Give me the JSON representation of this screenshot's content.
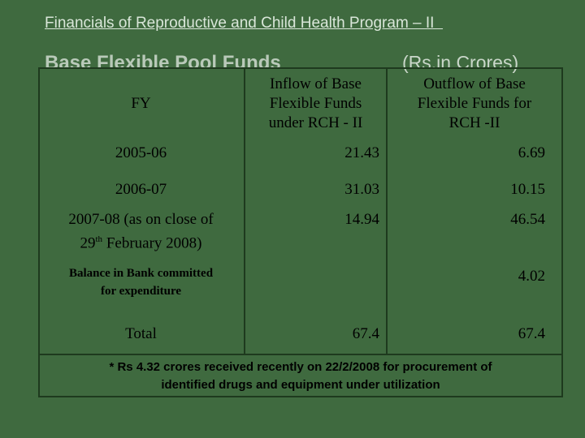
{
  "title": "Financials of Reproductive and Child Health Program – II  ",
  "subtitle": "Base Flexible Pool Funds",
  "unit": "(Rs.in Crores)",
  "table": {
    "headers": {
      "fy": "FY",
      "inflow": [
        "Inflow of Base",
        "Flexible Funds",
        "under RCH - II"
      ],
      "outflow": [
        "Outflow of Base",
        "Flexible Funds for",
        "RCH -II"
      ]
    },
    "rows": [
      {
        "fy": "2005-06",
        "inflow": "21.43",
        "outflow": "6.69"
      },
      {
        "fy": "2006-07",
        "inflow": "31.03",
        "outflow": "10.15"
      },
      {
        "fy_line1": "2007-08 (as on close of",
        "fy_line2_pre": "29",
        "fy_line2_sup": "th",
        "fy_line2_post": " February 2008)",
        "inflow": "14.94",
        "outflow": "46.54"
      }
    ],
    "balance": {
      "label_line1": "Balance in Bank committed",
      "label_line2": "for expenditure",
      "outflow": "4.02"
    },
    "total": {
      "label": "Total",
      "inflow": "67.4",
      "outflow": "67.4"
    }
  },
  "note": {
    "line1": "* Rs 4.32 crores received recently on 22/2/2008 for procurement of",
    "line2": "identified drugs and equipment under utilization"
  }
}
